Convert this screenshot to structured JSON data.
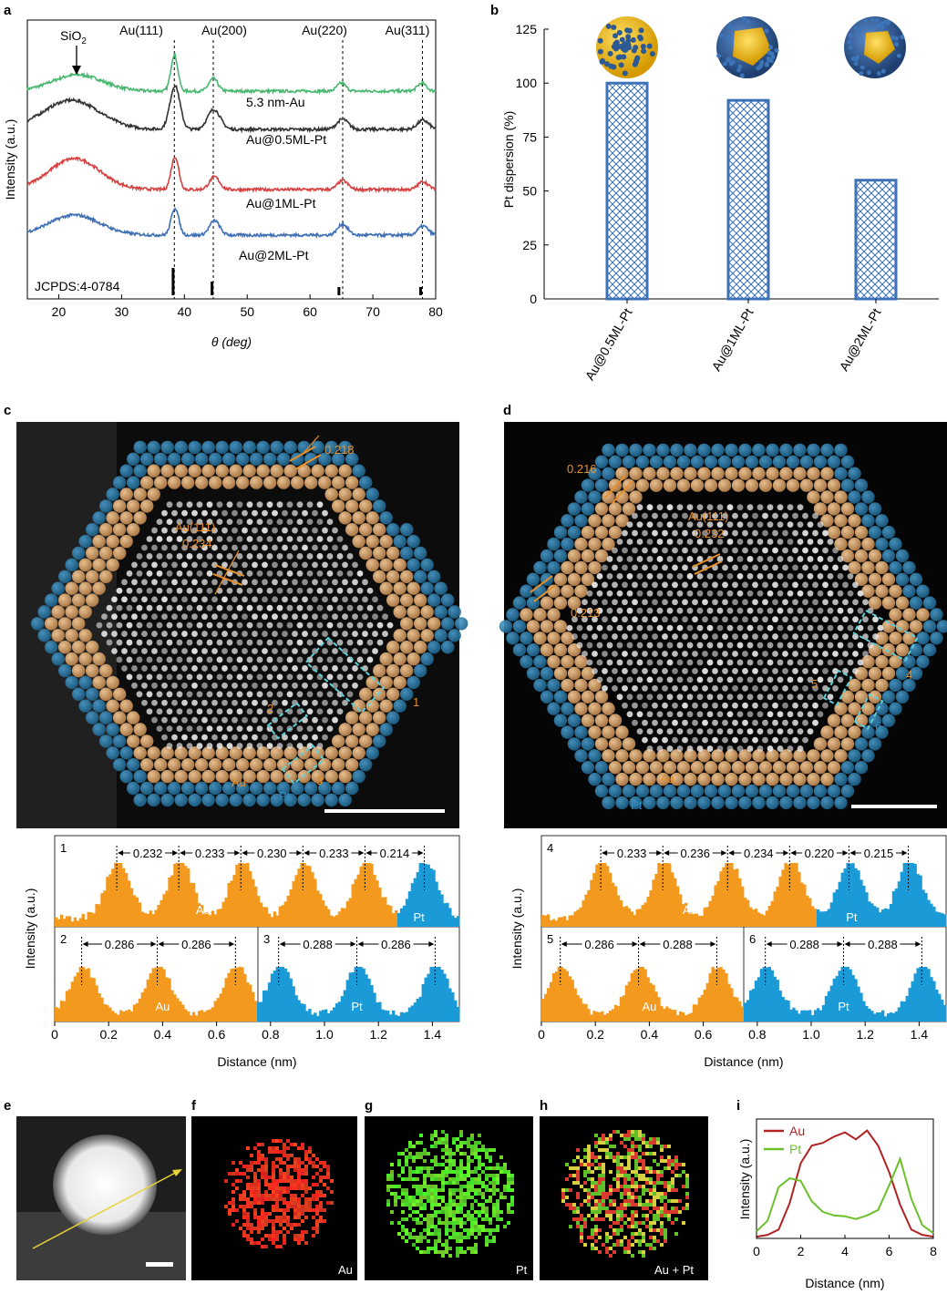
{
  "panel_letters": [
    "a",
    "b",
    "c",
    "d",
    "e",
    "f",
    "g",
    "h",
    "i"
  ],
  "colors": {
    "au_orange": "#f39a1e",
    "pt_blue": "#1a9ad6",
    "green": "#4ab870",
    "gray": "#333333",
    "red": "#d84040",
    "blue": "#3f70b5",
    "bar_border": "#3b72b8",
    "i_au": "#b22222",
    "i_pt": "#6cc12a"
  },
  "chart_data": [
    {
      "panel": "a",
      "type": "line",
      "xlabel": "θ (deg)",
      "ylabel": "Intensity (a.u.)",
      "xlim": [
        15,
        80
      ],
      "xticks": [
        20,
        30,
        40,
        50,
        60,
        70,
        80
      ],
      "series": [
        {
          "name": "5.3 nm-Au",
          "color": "#4ab870",
          "offset": 0,
          "peaks": [
            [
              23,
              0.45,
              4
            ],
            [
              38.4,
              1.0,
              0.55
            ],
            [
              44.6,
              0.35,
              0.7
            ],
            [
              65.0,
              0.22,
              0.7
            ],
            [
              77.8,
              0.22,
              0.7
            ]
          ]
        },
        {
          "name": "Au@0.5ML-Pt",
          "color": "#333333",
          "offset": 1,
          "peaks": [
            [
              22,
              0.8,
              4.5
            ],
            [
              38.5,
              1.2,
              0.8
            ],
            [
              44.7,
              0.55,
              1.0
            ],
            [
              65.2,
              0.28,
              0.9
            ],
            [
              78.0,
              0.25,
              0.9
            ]
          ]
        },
        {
          "name": "Au@1ML-Pt",
          "color": "#d84040",
          "offset": 2,
          "peaks": [
            [
              22.5,
              0.85,
              4
            ],
            [
              38.5,
              0.9,
              0.6
            ],
            [
              44.8,
              0.35,
              0.8
            ],
            [
              65.2,
              0.25,
              0.8
            ],
            [
              78.0,
              0.22,
              0.8
            ]
          ]
        },
        {
          "name": "Au@2ML-Pt",
          "color": "#3f70b5",
          "offset": 3,
          "peaks": [
            [
              22.5,
              0.55,
              4
            ],
            [
              38.5,
              0.75,
              0.6
            ],
            [
              44.8,
              0.4,
              0.8
            ],
            [
              65.2,
              0.3,
              0.8
            ],
            [
              78.0,
              0.25,
              0.8
            ]
          ]
        }
      ],
      "peak_labels": [
        {
          "text": "Au(111)",
          "x": 38.4
        },
        {
          "text": "Au(200)",
          "x": 44.6
        },
        {
          "text": "Au(220)",
          "x": 65.2
        },
        {
          "text": "Au(311)",
          "x": 77.9
        }
      ],
      "sio2_label": "SiO",
      "sio2_sub": "2",
      "jcpds_label": "JCPDS:4-0784",
      "jcpds_lines": [
        [
          38.2,
          1.0
        ],
        [
          44.4,
          0.5
        ],
        [
          64.6,
          0.3
        ],
        [
          77.6,
          0.3
        ]
      ]
    },
    {
      "panel": "b",
      "type": "bar",
      "ylabel": "Pt dispersion (%)",
      "ylim": [
        0,
        125
      ],
      "yticks": [
        0,
        25,
        50,
        75,
        100,
        125
      ],
      "categories": [
        "Au@0.5ML-Pt",
        "Au@1ML-Pt",
        "Au@2ML-Pt"
      ],
      "values": [
        100,
        92,
        55
      ]
    },
    {
      "panel": "c-e",
      "type": "bar",
      "xlabel": "Distance (nm)",
      "ylabel": "Intensity (a.u.)",
      "xlim": [
        0,
        1.5
      ],
      "xticks": [
        "0",
        "0.2",
        "0.4",
        "0.6",
        "0.8",
        "1.0",
        "1.2",
        "1.4"
      ],
      "profiles": [
        {
          "id": "1",
          "peaks": [
            0.23,
            0.46,
            0.69,
            0.92,
            1.15,
            1.37
          ],
          "spacings": [
            "0.232",
            "0.233",
            "0.230",
            "0.233",
            "0.214"
          ],
          "au_end": 1.27,
          "au_label": "Au",
          "pt_label": "Pt"
        },
        {
          "id": "2",
          "peaks": [
            0.1,
            0.38,
            0.67
          ],
          "spacings": [
            "0.286",
            "0.286"
          ],
          "au_label": "Au"
        },
        {
          "id": "3",
          "peaks": [
            0.83,
            1.12,
            1.41
          ],
          "spacings": [
            "0.288",
            "0.286"
          ],
          "pt_label": "Pt"
        }
      ]
    },
    {
      "panel": "d-e",
      "type": "bar",
      "xlabel": "Distance (nm)",
      "ylabel": "Intensity (a.u.)",
      "xlim": [
        0,
        1.5
      ],
      "xticks": [
        "0",
        "0.2",
        "0.4",
        "0.6",
        "0.8",
        "1.0",
        "1.2",
        "1.4"
      ],
      "profiles": [
        {
          "id": "4",
          "peaks": [
            0.22,
            0.45,
            0.69,
            0.92,
            1.14,
            1.36
          ],
          "spacings": [
            "0.233",
            "0.236",
            "0.234",
            "0.220",
            "0.215"
          ],
          "au_end": 1.02,
          "au_label": "Au",
          "pt_label": "Pt"
        },
        {
          "id": "5",
          "peaks": [
            0.07,
            0.36,
            0.65
          ],
          "spacings": [
            "0.286",
            "0.288"
          ],
          "au_label": "Au"
        },
        {
          "id": "6",
          "peaks": [
            0.83,
            1.12,
            1.41
          ],
          "spacings": [
            "0.288",
            "0.288"
          ],
          "pt_label": "Pt"
        }
      ]
    },
    {
      "panel": "i",
      "type": "line",
      "xlabel": "Distance (nm)",
      "ylabel": "Intensity (a.u.)",
      "xlim": [
        0,
        8
      ],
      "xticks": [
        0,
        2,
        4,
        6,
        8
      ],
      "series": [
        {
          "name": "Au",
          "x": [
            0,
            0.5,
            1,
            1.5,
            2,
            2.5,
            3,
            3.5,
            4,
            4.5,
            5,
            5.5,
            6,
            6.5,
            7,
            7.5,
            8
          ],
          "y": [
            0.02,
            0.04,
            0.1,
            0.4,
            0.85,
            1.05,
            1.08,
            1.15,
            1.2,
            1.12,
            1.22,
            1.05,
            0.75,
            0.38,
            0.1,
            0.04,
            0.02
          ]
        },
        {
          "name": "Pt",
          "x": [
            0,
            0.5,
            1,
            1.5,
            2,
            2.5,
            3,
            3.5,
            4,
            4.5,
            5,
            5.5,
            6,
            6.5,
            7,
            7.5,
            8
          ],
          "y": [
            0.08,
            0.2,
            0.58,
            0.68,
            0.65,
            0.42,
            0.3,
            0.26,
            0.25,
            0.22,
            0.26,
            0.32,
            0.6,
            0.9,
            0.45,
            0.15,
            0.06
          ]
        }
      ]
    }
  ],
  "micrographs": {
    "c": {
      "measure_1": "0.218",
      "measure_2_title": "Au(111)",
      "measure_2": "0.234",
      "boxes": [
        "1",
        "2",
        "3"
      ],
      "au_label": "Au",
      "pt_label": "Pt"
    },
    "d": {
      "measure_1": "0.216",
      "measure_2_title": "Au(111)",
      "measure_2": "0.232",
      "measure_3": "0.213",
      "boxes": [
        "4",
        "5",
        "6"
      ],
      "au_label": "Au",
      "pt_label": "Pt"
    },
    "f": {
      "label": "Au"
    },
    "g": {
      "label": "Pt"
    },
    "h": {
      "label": "Au + Pt"
    }
  }
}
